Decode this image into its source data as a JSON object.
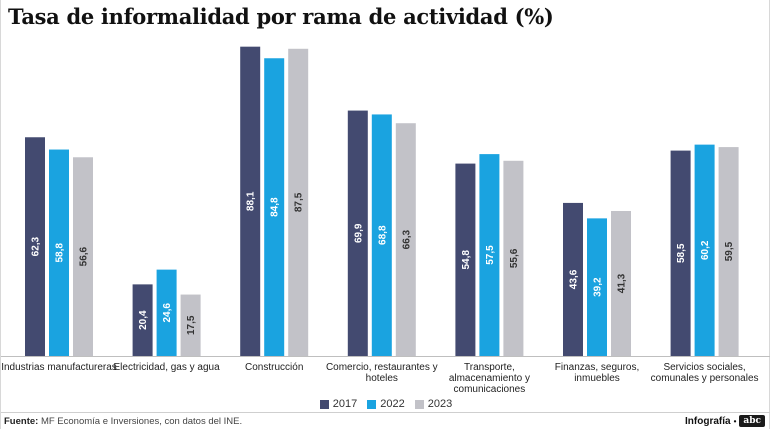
{
  "chart_data": {
    "type": "bar",
    "title": "Tasa de informalidad por rama de actividad (%)",
    "xlabel": "",
    "ylabel": "",
    "ylim": [
      0,
      90
    ],
    "grid": false,
    "legend_position": "bottom",
    "categories": [
      [
        "Industrias manufactureras"
      ],
      [
        "Electricidad, gas y agua"
      ],
      [
        "Construcción"
      ],
      [
        "Comercio, restaurantes y",
        "hoteles"
      ],
      [
        "Transporte,",
        "almacenamiento y",
        "comunicaciones"
      ],
      [
        "Finanzas, seguros,",
        "inmuebles"
      ],
      [
        "Servicios sociales,",
        "comunales y personales"
      ]
    ],
    "series": [
      {
        "name": "2017",
        "color": "#434a70",
        "values": [
          62.3,
          20.4,
          88.1,
          69.9,
          54.8,
          43.6,
          58.5
        ],
        "labels": [
          "62,3",
          "20,4",
          "88,1",
          "69,9",
          "54,8",
          "43,6",
          "58,5"
        ]
      },
      {
        "name": "2022",
        "color": "#1aa3e0",
        "values": [
          58.8,
          24.6,
          84.8,
          68.8,
          57.5,
          39.2,
          60.2
        ],
        "labels": [
          "58,8",
          "24,6",
          "84,8",
          "68,8",
          "57,5",
          "39,2",
          "60,2"
        ]
      },
      {
        "name": "2023",
        "color": "#c2c2c8",
        "values": [
          56.6,
          17.5,
          87.5,
          66.3,
          55.6,
          41.3,
          59.5
        ],
        "labels": [
          "56,6",
          "17,5",
          "87,5",
          "66,3",
          "55,6",
          "41,3",
          "59,5"
        ]
      }
    ]
  },
  "footer": {
    "source_label": "Fuente:",
    "source_text": "MF Economía e Inversiones, con datos del INE.",
    "credit": "Infografía",
    "credit_dot": "•",
    "logo": "abc"
  }
}
